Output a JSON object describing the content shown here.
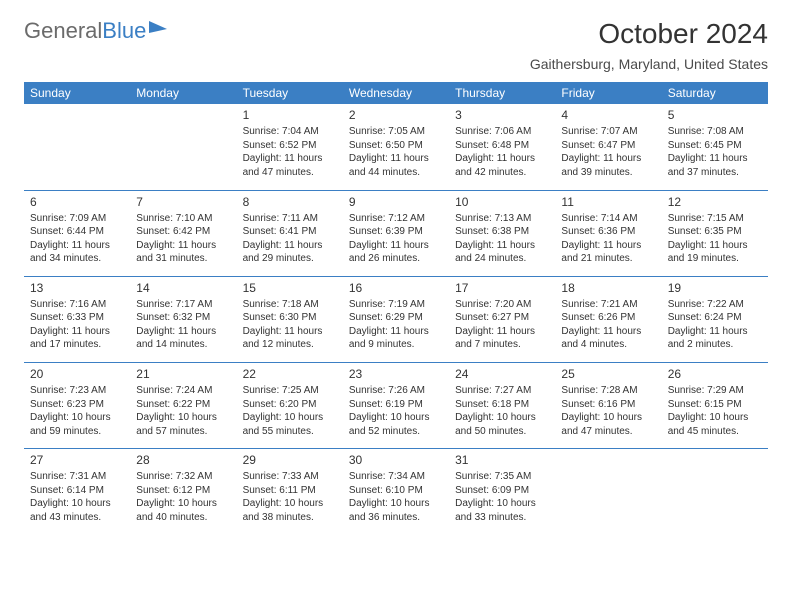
{
  "logo": {
    "text_gray": "General",
    "text_blue": "Blue"
  },
  "header": {
    "month_title": "October 2024",
    "location": "Gaithersburg, Maryland, United States"
  },
  "calendar": {
    "day_headers": [
      "Sunday",
      "Monday",
      "Tuesday",
      "Wednesday",
      "Thursday",
      "Friday",
      "Saturday"
    ],
    "header_bg": "#3b7fc4",
    "header_fg": "#ffffff",
    "rule_color": "#3b7fc4",
    "body_font_size": 10,
    "daynum_font_size": 12,
    "weeks": [
      [
        null,
        null,
        {
          "n": "1",
          "sr": "Sunrise: 7:04 AM",
          "ss": "Sunset: 6:52 PM",
          "dl": "Daylight: 11 hours and 47 minutes."
        },
        {
          "n": "2",
          "sr": "Sunrise: 7:05 AM",
          "ss": "Sunset: 6:50 PM",
          "dl": "Daylight: 11 hours and 44 minutes."
        },
        {
          "n": "3",
          "sr": "Sunrise: 7:06 AM",
          "ss": "Sunset: 6:48 PM",
          "dl": "Daylight: 11 hours and 42 minutes."
        },
        {
          "n": "4",
          "sr": "Sunrise: 7:07 AM",
          "ss": "Sunset: 6:47 PM",
          "dl": "Daylight: 11 hours and 39 minutes."
        },
        {
          "n": "5",
          "sr": "Sunrise: 7:08 AM",
          "ss": "Sunset: 6:45 PM",
          "dl": "Daylight: 11 hours and 37 minutes."
        }
      ],
      [
        {
          "n": "6",
          "sr": "Sunrise: 7:09 AM",
          "ss": "Sunset: 6:44 PM",
          "dl": "Daylight: 11 hours and 34 minutes."
        },
        {
          "n": "7",
          "sr": "Sunrise: 7:10 AM",
          "ss": "Sunset: 6:42 PM",
          "dl": "Daylight: 11 hours and 31 minutes."
        },
        {
          "n": "8",
          "sr": "Sunrise: 7:11 AM",
          "ss": "Sunset: 6:41 PM",
          "dl": "Daylight: 11 hours and 29 minutes."
        },
        {
          "n": "9",
          "sr": "Sunrise: 7:12 AM",
          "ss": "Sunset: 6:39 PM",
          "dl": "Daylight: 11 hours and 26 minutes."
        },
        {
          "n": "10",
          "sr": "Sunrise: 7:13 AM",
          "ss": "Sunset: 6:38 PM",
          "dl": "Daylight: 11 hours and 24 minutes."
        },
        {
          "n": "11",
          "sr": "Sunrise: 7:14 AM",
          "ss": "Sunset: 6:36 PM",
          "dl": "Daylight: 11 hours and 21 minutes."
        },
        {
          "n": "12",
          "sr": "Sunrise: 7:15 AM",
          "ss": "Sunset: 6:35 PM",
          "dl": "Daylight: 11 hours and 19 minutes."
        }
      ],
      [
        {
          "n": "13",
          "sr": "Sunrise: 7:16 AM",
          "ss": "Sunset: 6:33 PM",
          "dl": "Daylight: 11 hours and 17 minutes."
        },
        {
          "n": "14",
          "sr": "Sunrise: 7:17 AM",
          "ss": "Sunset: 6:32 PM",
          "dl": "Daylight: 11 hours and 14 minutes."
        },
        {
          "n": "15",
          "sr": "Sunrise: 7:18 AM",
          "ss": "Sunset: 6:30 PM",
          "dl": "Daylight: 11 hours and 12 minutes."
        },
        {
          "n": "16",
          "sr": "Sunrise: 7:19 AM",
          "ss": "Sunset: 6:29 PM",
          "dl": "Daylight: 11 hours and 9 minutes."
        },
        {
          "n": "17",
          "sr": "Sunrise: 7:20 AM",
          "ss": "Sunset: 6:27 PM",
          "dl": "Daylight: 11 hours and 7 minutes."
        },
        {
          "n": "18",
          "sr": "Sunrise: 7:21 AM",
          "ss": "Sunset: 6:26 PM",
          "dl": "Daylight: 11 hours and 4 minutes."
        },
        {
          "n": "19",
          "sr": "Sunrise: 7:22 AM",
          "ss": "Sunset: 6:24 PM",
          "dl": "Daylight: 11 hours and 2 minutes."
        }
      ],
      [
        {
          "n": "20",
          "sr": "Sunrise: 7:23 AM",
          "ss": "Sunset: 6:23 PM",
          "dl": "Daylight: 10 hours and 59 minutes."
        },
        {
          "n": "21",
          "sr": "Sunrise: 7:24 AM",
          "ss": "Sunset: 6:22 PM",
          "dl": "Daylight: 10 hours and 57 minutes."
        },
        {
          "n": "22",
          "sr": "Sunrise: 7:25 AM",
          "ss": "Sunset: 6:20 PM",
          "dl": "Daylight: 10 hours and 55 minutes."
        },
        {
          "n": "23",
          "sr": "Sunrise: 7:26 AM",
          "ss": "Sunset: 6:19 PM",
          "dl": "Daylight: 10 hours and 52 minutes."
        },
        {
          "n": "24",
          "sr": "Sunrise: 7:27 AM",
          "ss": "Sunset: 6:18 PM",
          "dl": "Daylight: 10 hours and 50 minutes."
        },
        {
          "n": "25",
          "sr": "Sunrise: 7:28 AM",
          "ss": "Sunset: 6:16 PM",
          "dl": "Daylight: 10 hours and 47 minutes."
        },
        {
          "n": "26",
          "sr": "Sunrise: 7:29 AM",
          "ss": "Sunset: 6:15 PM",
          "dl": "Daylight: 10 hours and 45 minutes."
        }
      ],
      [
        {
          "n": "27",
          "sr": "Sunrise: 7:31 AM",
          "ss": "Sunset: 6:14 PM",
          "dl": "Daylight: 10 hours and 43 minutes."
        },
        {
          "n": "28",
          "sr": "Sunrise: 7:32 AM",
          "ss": "Sunset: 6:12 PM",
          "dl": "Daylight: 10 hours and 40 minutes."
        },
        {
          "n": "29",
          "sr": "Sunrise: 7:33 AM",
          "ss": "Sunset: 6:11 PM",
          "dl": "Daylight: 10 hours and 38 minutes."
        },
        {
          "n": "30",
          "sr": "Sunrise: 7:34 AM",
          "ss": "Sunset: 6:10 PM",
          "dl": "Daylight: 10 hours and 36 minutes."
        },
        {
          "n": "31",
          "sr": "Sunrise: 7:35 AM",
          "ss": "Sunset: 6:09 PM",
          "dl": "Daylight: 10 hours and 33 minutes."
        },
        null,
        null
      ]
    ]
  }
}
